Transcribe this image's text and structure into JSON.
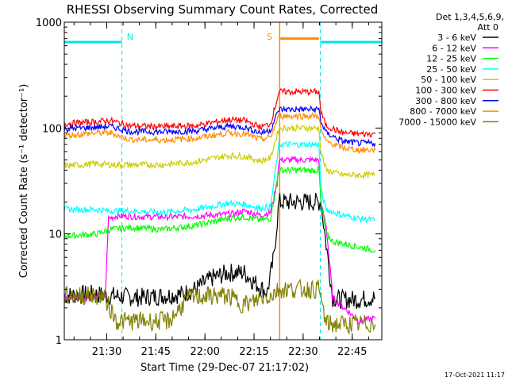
{
  "chart_data": {
    "type": "line",
    "title": "RHESSI Observing Summary Count Rates, Corrected",
    "xlabel": "Start Time (29-Dec-07 21:17:02)",
    "ylabel": "Corrected Count Rate (s⁻¹ detector⁻¹)",
    "yscale": "log",
    "ylim": [
      1,
      1000
    ],
    "xlim_minutes": [
      0,
      97
    ],
    "x_tick_labels": [
      "21:30",
      "21:45",
      "22:00",
      "22:15",
      "22:30",
      "22:45"
    ],
    "x_tick_minutes": [
      12.97,
      27.97,
      42.97,
      57.97,
      72.97,
      87.97
    ],
    "y_tick_labels": [
      "1",
      "10",
      "100",
      "1000"
    ],
    "y_tick_values": [
      1,
      10,
      100,
      1000
    ],
    "legend_header": [
      "Det 1,3,4,5,6,9,",
      "Att 0"
    ],
    "legend_placement": "right",
    "annotations": [
      {
        "text": "N",
        "x_minutes": 20.1,
        "color": "#00e5e5"
      },
      {
        "text": "S",
        "x_minutes": 62.7,
        "color": "#ff8c00"
      }
    ],
    "night_markers_minutes": [
      0,
      17.6,
      78.2,
      97
    ],
    "saa_marker_minutes": 65.8,
    "bars": [
      {
        "name": "night",
        "color": "#00e5e5",
        "x_minutes": [
          [
            0,
            17.6
          ],
          [
            78.2,
            97
          ]
        ],
        "y": 650
      },
      {
        "name": "saa",
        "color": "#ff8c00",
        "x_minutes": [
          [
            66,
            77.8
          ]
        ],
        "y": 700
      }
    ],
    "series": [
      {
        "name": "3 - 6 keV",
        "color": "#000000",
        "points": [
          [
            0,
            2.6
          ],
          [
            8,
            2.7
          ],
          [
            15,
            2.6
          ],
          [
            22,
            2.5
          ],
          [
            30,
            2.6
          ],
          [
            36,
            2.7
          ],
          [
            40,
            3.0
          ],
          [
            45,
            3.8
          ],
          [
            50,
            4.3
          ],
          [
            55,
            4.3
          ],
          [
            58,
            3.5
          ],
          [
            62,
            2.8
          ],
          [
            64,
            6
          ],
          [
            65.6,
            20
          ],
          [
            77.8,
            20
          ],
          [
            78.4,
            20
          ],
          [
            80,
            8
          ],
          [
            82,
            2.5
          ],
          [
            84,
            2.4
          ],
          [
            90,
            2.4
          ],
          [
            95,
            2.5
          ]
        ]
      },
      {
        "name": "6 - 12 keV",
        "color": "#ff00ff",
        "points": [
          [
            0,
            2.5
          ],
          [
            10,
            2.5
          ],
          [
            12.5,
            2.5
          ],
          [
            13.5,
            14
          ],
          [
            16,
            14.8
          ],
          [
            25,
            14.5
          ],
          [
            35,
            14.5
          ],
          [
            45,
            15
          ],
          [
            52,
            15.5
          ],
          [
            55,
            16.5
          ],
          [
            60,
            15
          ],
          [
            63,
            16
          ],
          [
            65,
            30
          ],
          [
            65.6,
            50
          ],
          [
            77.8,
            50
          ],
          [
            78.4,
            20
          ],
          [
            80,
            12
          ],
          [
            82,
            2.5
          ],
          [
            90,
            1.5
          ],
          [
            95,
            1.6
          ]
        ]
      },
      {
        "name": "12 - 25 keV",
        "color": "#00ff00",
        "points": [
          [
            0,
            9.5
          ],
          [
            10,
            10
          ],
          [
            14,
            11
          ],
          [
            20,
            11.5
          ],
          [
            30,
            11
          ],
          [
            40,
            12
          ],
          [
            50,
            14
          ],
          [
            55,
            14.5
          ],
          [
            60,
            13.5
          ],
          [
            63,
            14
          ],
          [
            65.6,
            40
          ],
          [
            77.8,
            40
          ],
          [
            78.4,
            20
          ],
          [
            80,
            10
          ],
          [
            82,
            8.5
          ],
          [
            90,
            7.5
          ],
          [
            95,
            7
          ]
        ]
      },
      {
        "name": "25 - 50 keV",
        "color": "#00ffff",
        "points": [
          [
            0,
            17
          ],
          [
            10,
            17
          ],
          [
            14,
            16.5
          ],
          [
            20,
            16.5
          ],
          [
            30,
            16
          ],
          [
            40,
            17
          ],
          [
            50,
            19.5
          ],
          [
            55,
            19
          ],
          [
            60,
            17.5
          ],
          [
            63,
            18
          ],
          [
            65.6,
            70
          ],
          [
            77.8,
            70
          ],
          [
            78.4,
            26
          ],
          [
            80,
            17
          ],
          [
            85,
            15
          ],
          [
            90,
            14
          ],
          [
            95,
            13.5
          ]
        ]
      },
      {
        "name": "50 - 100 keV",
        "color": "#cccc00",
        "points": [
          [
            0,
            44
          ],
          [
            10,
            46
          ],
          [
            14,
            45
          ],
          [
            20,
            45
          ],
          [
            30,
            45
          ],
          [
            40,
            48
          ],
          [
            50,
            55
          ],
          [
            55,
            54
          ],
          [
            60,
            49
          ],
          [
            63,
            52
          ],
          [
            65.6,
            100
          ],
          [
            77.8,
            100
          ],
          [
            78.4,
            60
          ],
          [
            80,
            40
          ],
          [
            85,
            36
          ],
          [
            90,
            36
          ],
          [
            95,
            36
          ]
        ]
      },
      {
        "name": "100 - 300 keV",
        "color": "#ff0000",
        "points": [
          [
            0,
            110
          ],
          [
            10,
            115
          ],
          [
            14,
            118
          ],
          [
            20,
            105
          ],
          [
            30,
            103
          ],
          [
            40,
            105
          ],
          [
            50,
            120
          ],
          [
            55,
            118
          ],
          [
            60,
            102
          ],
          [
            63,
            110
          ],
          [
            65.6,
            220
          ],
          [
            77.8,
            220
          ],
          [
            78.4,
            140
          ],
          [
            80,
            105
          ],
          [
            85,
            90
          ],
          [
            90,
            88
          ],
          [
            95,
            88
          ]
        ]
      },
      {
        "name": "300 - 800 keV",
        "color": "#0000ff",
        "points": [
          [
            0,
            98
          ],
          [
            10,
            102
          ],
          [
            14,
            104
          ],
          [
            20,
            93
          ],
          [
            30,
            92
          ],
          [
            40,
            94
          ],
          [
            50,
            104
          ],
          [
            55,
            102
          ],
          [
            60,
            90
          ],
          [
            63,
            96
          ],
          [
            65.6,
            150
          ],
          [
            77.8,
            150
          ],
          [
            78.4,
            115
          ],
          [
            80,
            90
          ],
          [
            85,
            75
          ],
          [
            90,
            72
          ],
          [
            95,
            72
          ]
        ]
      },
      {
        "name": "800 - 7000 keV",
        "color": "#ff8c00",
        "points": [
          [
            0,
            85
          ],
          [
            10,
            90
          ],
          [
            14,
            90
          ],
          [
            20,
            78
          ],
          [
            30,
            77
          ],
          [
            40,
            80
          ],
          [
            50,
            90
          ],
          [
            55,
            88
          ],
          [
            60,
            78
          ],
          [
            63,
            82
          ],
          [
            65.6,
            130
          ],
          [
            77.8,
            130
          ],
          [
            78.4,
            95
          ],
          [
            80,
            75
          ],
          [
            85,
            65
          ],
          [
            90,
            62
          ],
          [
            95,
            62
          ]
        ]
      },
      {
        "name": "7000 - 15000 keV",
        "color": "#808000",
        "points": [
          [
            0,
            2.6
          ],
          [
            12,
            2.6
          ],
          [
            16,
            1.5
          ],
          [
            24,
            1.5
          ],
          [
            32,
            1.5
          ],
          [
            38,
            2.5
          ],
          [
            44,
            2.6
          ],
          [
            50,
            2.6
          ],
          [
            54,
            2.2
          ],
          [
            57,
            2.2
          ],
          [
            60,
            2.5
          ],
          [
            63,
            2.6
          ],
          [
            65.6,
            3
          ],
          [
            77.8,
            3
          ],
          [
            78.4,
            2.5
          ],
          [
            80,
            1.4
          ],
          [
            88,
            1.4
          ],
          [
            95,
            1.4
          ]
        ]
      }
    ]
  },
  "footer": {
    "timestamp": "17-Oct-2021 11:17"
  }
}
